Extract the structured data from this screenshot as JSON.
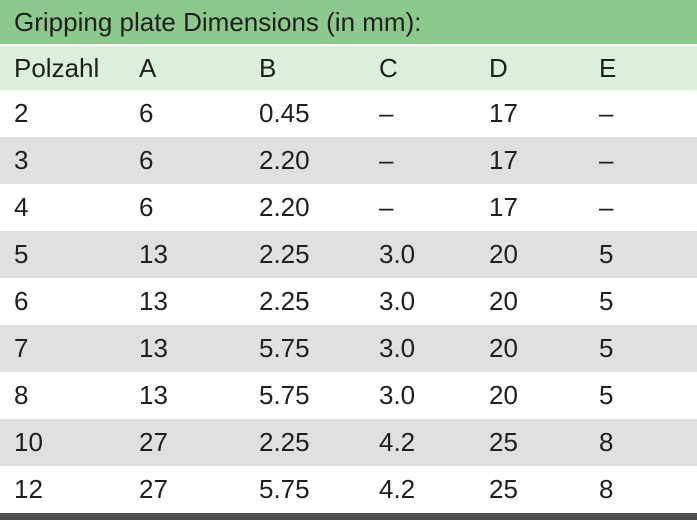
{
  "title": "Gripping plate Dimensions (in mm):",
  "colors": {
    "title_bar": "#8dc98d",
    "header_row": "#dceedc",
    "row_default": "#ffffff",
    "row_alt": "#e0e0e0",
    "bottom_bar": "#4f4f4f",
    "text": "#1f1f1f"
  },
  "table": {
    "columns": [
      "Polzahl",
      "A",
      "B",
      "C",
      "D",
      "E"
    ],
    "rows": [
      [
        "2",
        "6",
        "0.45",
        "–",
        "17",
        "–"
      ],
      [
        "3",
        "6",
        "2.20",
        "–",
        "17",
        "–"
      ],
      [
        "4",
        "6",
        "2.20",
        "–",
        "17",
        "–"
      ],
      [
        "5",
        "13",
        "2.25",
        "3.0",
        "20",
        "5"
      ],
      [
        "6",
        "13",
        "2.25",
        "3.0",
        "20",
        "5"
      ],
      [
        "7",
        "13",
        "5.75",
        "3.0",
        "20",
        "5"
      ],
      [
        "8",
        "13",
        "5.75",
        "3.0",
        "20",
        "5"
      ],
      [
        "10",
        "27",
        "2.25",
        "4.2",
        "25",
        "8"
      ],
      [
        "12",
        "27",
        "5.75",
        "4.2",
        "25",
        "8"
      ]
    ]
  }
}
